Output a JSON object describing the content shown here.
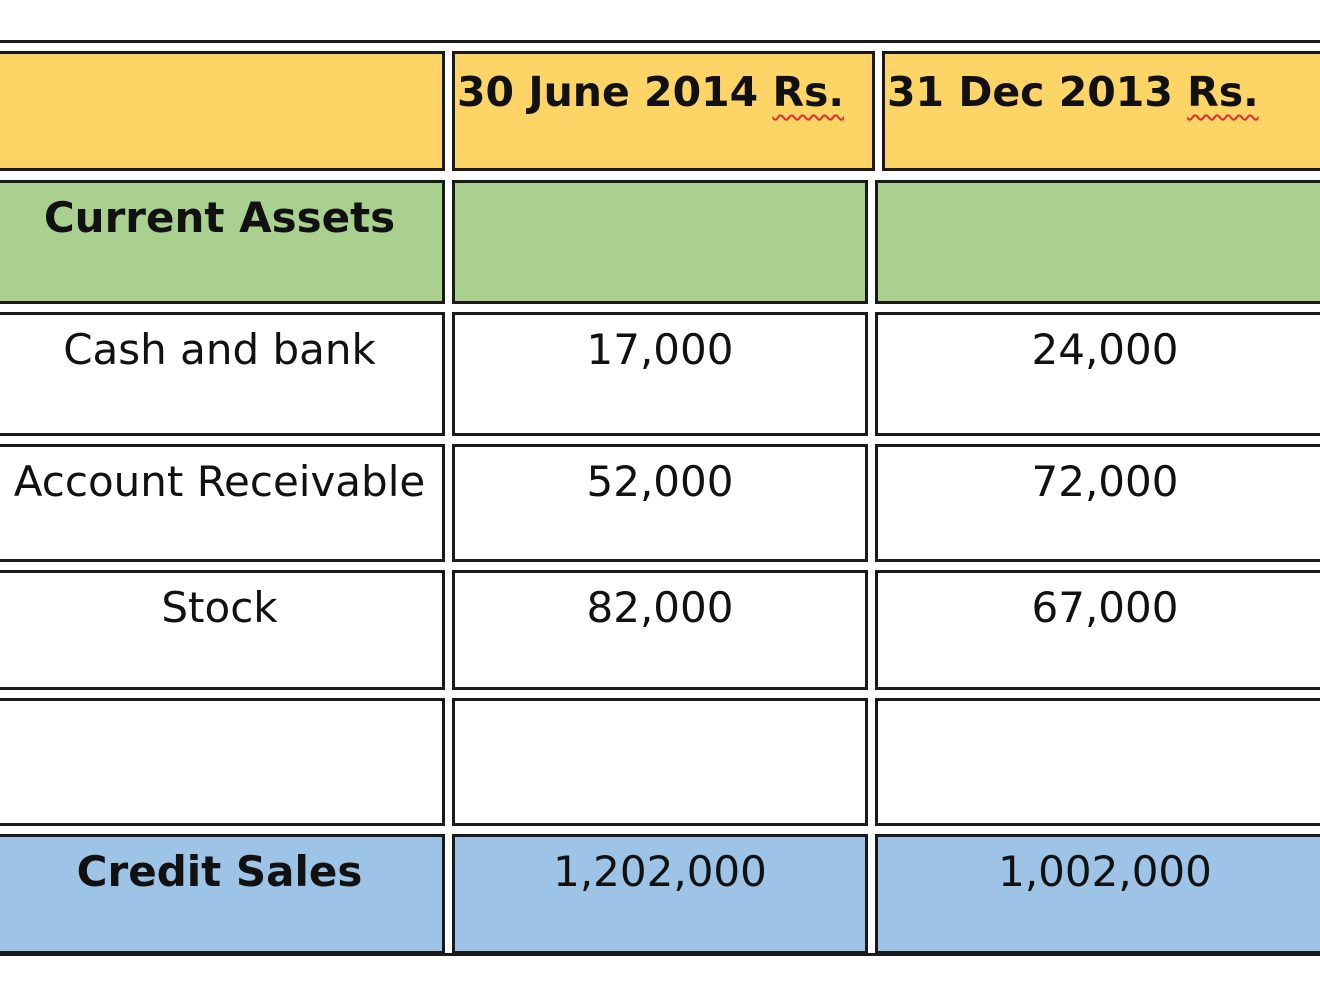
{
  "table": {
    "header": {
      "col1": "",
      "col2_date": "30 June 2014",
      "col2_unit": "Rs.",
      "col3_date": "31 Dec 2013",
      "col3_unit": "Rs."
    },
    "section_title": "Current Assets",
    "rows": [
      {
        "label": "Cash and bank",
        "v2014": "17,000",
        "v2013": "24,000"
      },
      {
        "label": "Account Receivable",
        "v2014": "52,000",
        "v2013": "72,000"
      },
      {
        "label": "Stock",
        "v2014": "82,000",
        "v2013": "67,000"
      },
      {
        "label": "",
        "v2014": "",
        "v2013": ""
      }
    ],
    "total": {
      "label": "Credit Sales",
      "v2014": "1,202,000",
      "v2013": "1,002,000"
    }
  },
  "colors": {
    "header_fill": "#fdd466",
    "section_fill": "#a9d08e",
    "total_fill": "#9dc3e6",
    "border": "#1a1a1a"
  }
}
